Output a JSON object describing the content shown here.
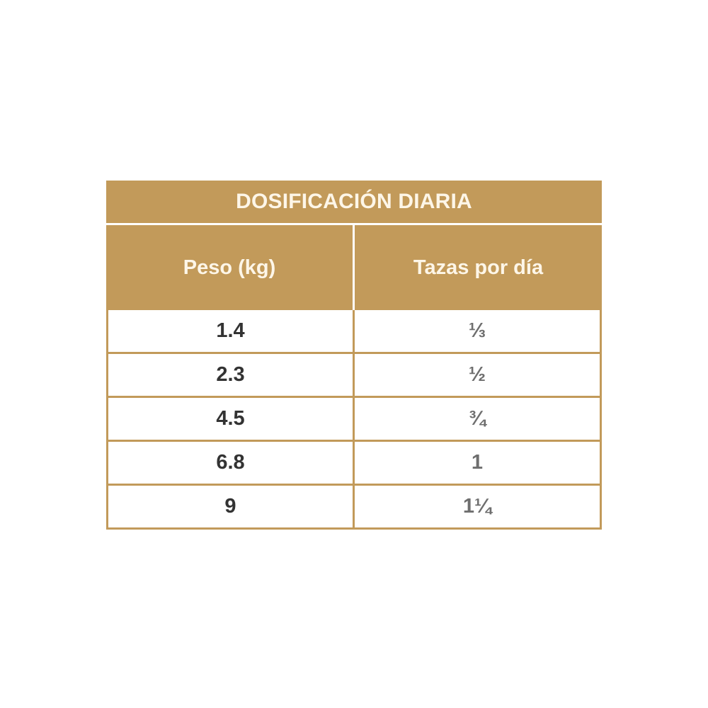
{
  "table": {
    "title": "DOSIFICACIÓN DIARIA",
    "headers": [
      "Peso (kg)",
      "Tazas por día"
    ],
    "rows": [
      [
        "1.4",
        "⅓"
      ],
      [
        "2.3",
        "½"
      ],
      [
        "4.5",
        "¾"
      ],
      [
        "6.8",
        "1"
      ],
      [
        "9",
        "1¼"
      ]
    ],
    "colors": {
      "header_bg": "#c29a5a",
      "header_text": "#fdf6e8",
      "weight_text": "#333333",
      "cups_text": "#6e6e6e"
    }
  }
}
